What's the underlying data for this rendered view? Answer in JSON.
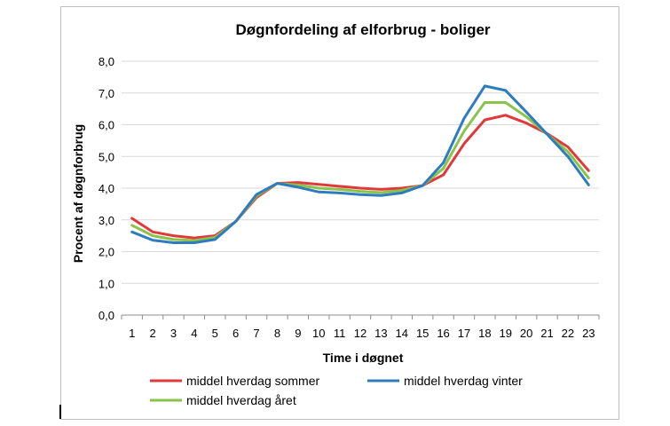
{
  "chart_data": {
    "type": "line",
    "title": "Døgnfordeling af elforbrug - boliger",
    "xlabel": "Time i døgnet",
    "ylabel": "Procent af døgnforbrug",
    "x": [
      1,
      2,
      3,
      4,
      5,
      6,
      7,
      8,
      9,
      10,
      11,
      12,
      13,
      14,
      15,
      16,
      17,
      18,
      19,
      20,
      21,
      22,
      23
    ],
    "ylim": [
      0,
      8
    ],
    "yticks": [
      "0,0",
      "1,0",
      "2,0",
      "3,0",
      "4,0",
      "5,0",
      "6,0",
      "7,0",
      "8,0"
    ],
    "grid": true,
    "legend_position": "bottom",
    "series": [
      {
        "name": "middel hverdag sommer",
        "color": "#e0383b",
        "values": [
          3.05,
          2.62,
          2.5,
          2.43,
          2.5,
          2.95,
          3.7,
          4.15,
          4.18,
          4.12,
          4.06,
          4.0,
          3.96,
          4.0,
          4.08,
          4.42,
          5.4,
          6.15,
          6.3,
          6.05,
          5.72,
          5.3,
          4.55
        ]
      },
      {
        "name": "middel hverdag vinter",
        "color": "#2f7bbf",
        "values": [
          2.62,
          2.36,
          2.28,
          2.28,
          2.38,
          2.95,
          3.8,
          4.15,
          4.03,
          3.88,
          3.85,
          3.8,
          3.77,
          3.85,
          4.08,
          4.8,
          6.2,
          7.22,
          7.08,
          6.4,
          5.7,
          5.0,
          4.1
        ]
      },
      {
        "name": "middel hverdag året",
        "color": "#8ac349",
        "values": [
          2.83,
          2.5,
          2.38,
          2.35,
          2.45,
          2.95,
          3.75,
          4.15,
          4.1,
          4.0,
          3.96,
          3.9,
          3.86,
          3.93,
          4.08,
          4.62,
          5.8,
          6.7,
          6.7,
          6.25,
          5.7,
          5.15,
          4.32
        ]
      }
    ]
  }
}
